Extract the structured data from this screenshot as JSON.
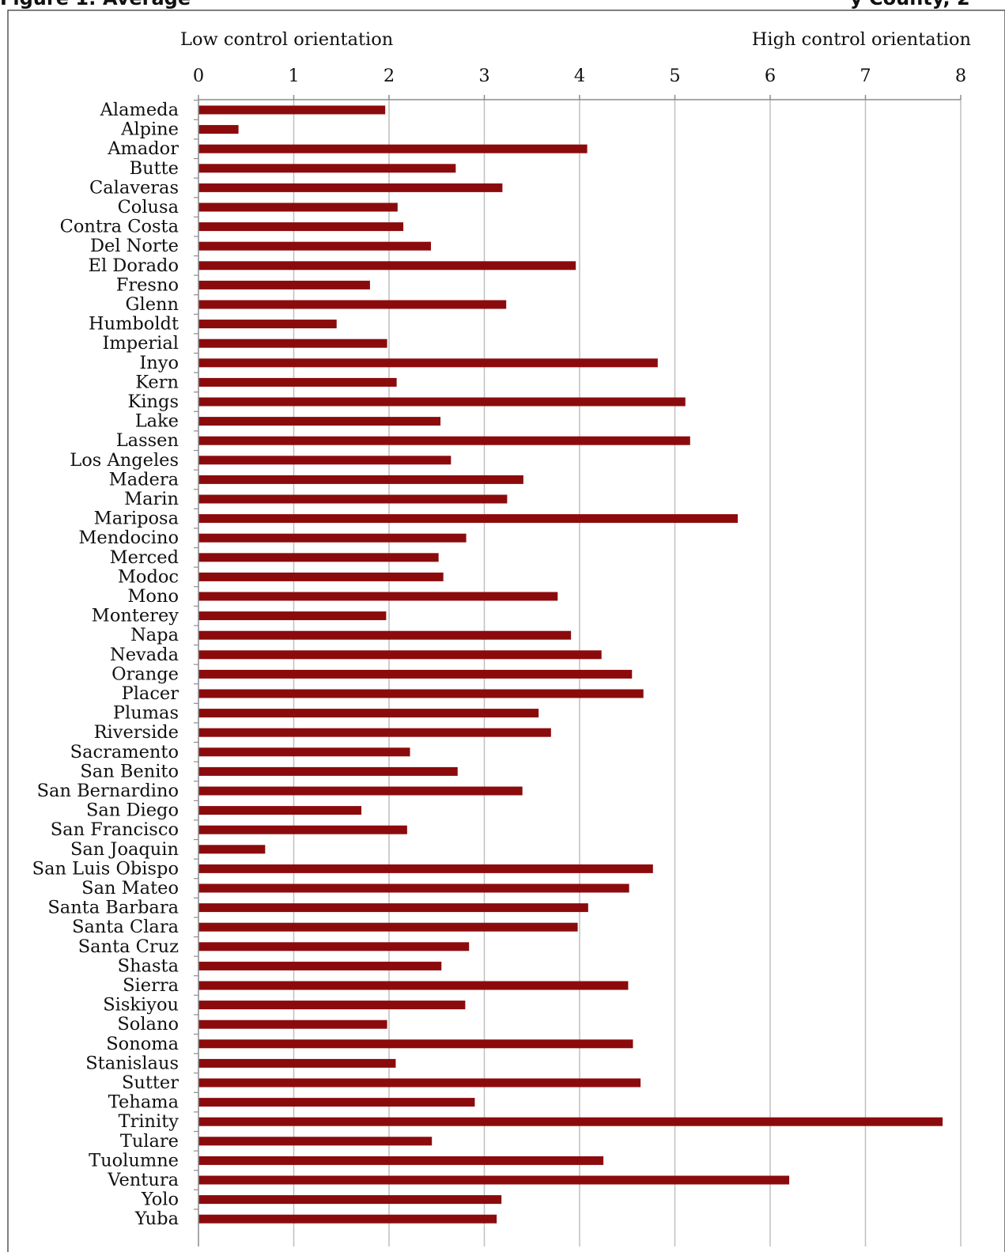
{
  "title": "Figure 1: Average",
  "title_tail": "y County, 2",
  "orientation": {
    "low": "Low control orientation",
    "high": "High control orientation"
  },
  "colors": {
    "bar": "#8b0b0d",
    "grid": "#bfbfbf",
    "axis": "#8c8c8c",
    "border": "#555555"
  },
  "chart_data": {
    "type": "bar",
    "orientation": "horizontal",
    "xlim": [
      0,
      8
    ],
    "x_ticks": [
      "0",
      "1",
      "2",
      "3",
      "4",
      "5",
      "6",
      "7",
      "8"
    ],
    "x_axis_position": "top",
    "grid": true,
    "categories": [
      "Alameda",
      "Alpine",
      "Amador",
      "Butte",
      "Calaveras",
      "Colusa",
      "Contra Costa",
      "Del Norte",
      "El Dorado",
      "Fresno",
      "Glenn",
      "Humboldt",
      "Imperial",
      "Inyo",
      "Kern",
      "Kings",
      "Lake",
      "Lassen",
      "Los Angeles",
      "Madera",
      "Marin",
      "Mariposa",
      "Mendocino",
      "Merced",
      "Modoc",
      "Mono",
      "Monterey",
      "Napa",
      "Nevada",
      "Orange",
      "Placer",
      "Plumas",
      "Riverside",
      "Sacramento",
      "San Benito",
      "San Bernardino",
      "San Diego",
      "San Francisco",
      "San Joaquin",
      "San Luis Obispo",
      "San Mateo",
      "Santa Barbara",
      "Santa Clara",
      "Santa Cruz",
      "Shasta",
      "Sierra",
      "Siskiyou",
      "Solano",
      "Sonoma",
      "Stanislaus",
      "Sutter",
      "Tehama",
      "Trinity",
      "Tulare",
      "Tuolumne",
      "Ventura",
      "Yolo",
      "Yuba"
    ],
    "values": [
      1.96,
      0.42,
      4.08,
      2.7,
      3.19,
      2.09,
      2.15,
      2.44,
      3.96,
      1.8,
      3.23,
      1.45,
      1.98,
      4.82,
      2.08,
      5.11,
      2.54,
      5.16,
      2.65,
      3.41,
      3.24,
      5.66,
      2.81,
      2.52,
      2.57,
      3.77,
      1.97,
      3.91,
      4.23,
      4.55,
      4.67,
      3.57,
      3.7,
      2.22,
      2.72,
      3.4,
      1.71,
      2.19,
      0.7,
      4.77,
      4.52,
      4.09,
      3.98,
      2.84,
      2.55,
      4.51,
      2.8,
      1.98,
      4.56,
      2.07,
      4.64,
      2.9,
      7.81,
      2.45,
      4.25,
      6.2,
      3.18,
      3.13
    ]
  }
}
